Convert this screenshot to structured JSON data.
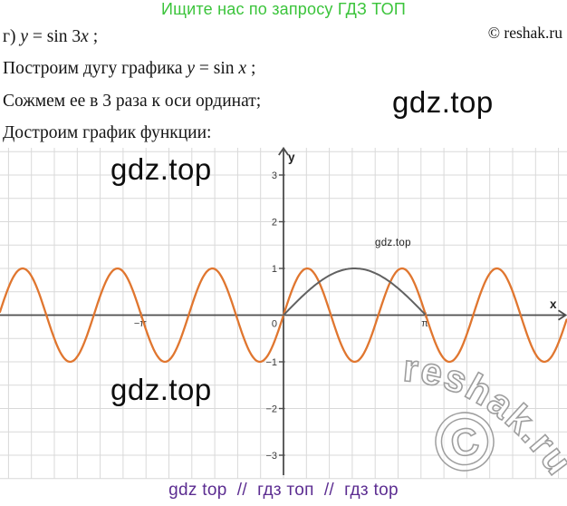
{
  "header": {
    "promo": "Ищите нас по запросу ГДЗ ТОП",
    "copyright": "© reshak.ru"
  },
  "solution": {
    "line1": [
      {
        "text": "г) ",
        "italic": false
      },
      {
        "text": "y",
        "italic": true
      },
      {
        "text": " = sin 3",
        "italic": false
      },
      {
        "text": "x",
        "italic": true
      },
      {
        "text": " ;",
        "italic": false
      }
    ],
    "line2": [
      {
        "text": "Построим дугу графика ",
        "italic": false
      },
      {
        "text": "y",
        "italic": true
      },
      {
        "text": " = sin ",
        "italic": false
      },
      {
        "text": "x",
        "italic": true
      },
      {
        "text": " ;",
        "italic": false
      }
    ],
    "line3": [
      {
        "text": "Сожмем ее в 3 раза к оси ординат;",
        "italic": false
      }
    ],
    "line4": [
      {
        "text": "Достроим график функции:",
        "italic": false
      }
    ]
  },
  "watermarks": {
    "big_text": "gdz.top",
    "small_graph_label": "gdz.top",
    "footer_text": "gdz top  //  гдз топ  //  гдз top",
    "reshak_arc_text": "reshak.ru",
    "reshak_copyright_letter": "C"
  },
  "colors": {
    "promo_green": "#3bc43b",
    "footer_purple": "#5c2d91",
    "curve_orange": "#e0762f",
    "curve_gray": "#616161",
    "grid_gray": "#d9d9d9",
    "axis_gray": "#4d4d4d",
    "watermark_outline": "#9e9e9e"
  },
  "chart_data": {
    "type": "line",
    "title": "",
    "xlabel": "x",
    "ylabel": "y",
    "grid": true,
    "grid_step_units": 0.5,
    "x_range_rad": [
      -6.26,
      6.26
    ],
    "y_range": [
      -3.5,
      3.5
    ],
    "functions": [
      {
        "name": "y = sin 3x",
        "amplitude": 1,
        "frequency": 3,
        "color": "#e0762f",
        "width": 2.3,
        "x_domain_rad": [
          -6.26,
          6.26
        ]
      },
      {
        "name": "y = sin x",
        "amplitude": 1,
        "frequency": 1,
        "color": "#616161",
        "width": 2.0,
        "x_domain_rad": [
          0,
          3.14159265
        ]
      }
    ],
    "x_axis": {
      "label": "x",
      "ticks": [
        {
          "value": -3.14159265,
          "label": "−π"
        },
        {
          "value": 3.14159265,
          "label": "π"
        }
      ]
    },
    "y_axis": {
      "label": "y",
      "ticks": [
        {
          "value": 3,
          "label": "3"
        },
        {
          "value": 2,
          "label": "2"
        },
        {
          "value": 1,
          "label": "1"
        },
        {
          "value": -1,
          "label": "−1"
        },
        {
          "value": -2,
          "label": "−2"
        },
        {
          "value": -3,
          "label": "−3"
        }
      ]
    },
    "origin_label": "0"
  }
}
